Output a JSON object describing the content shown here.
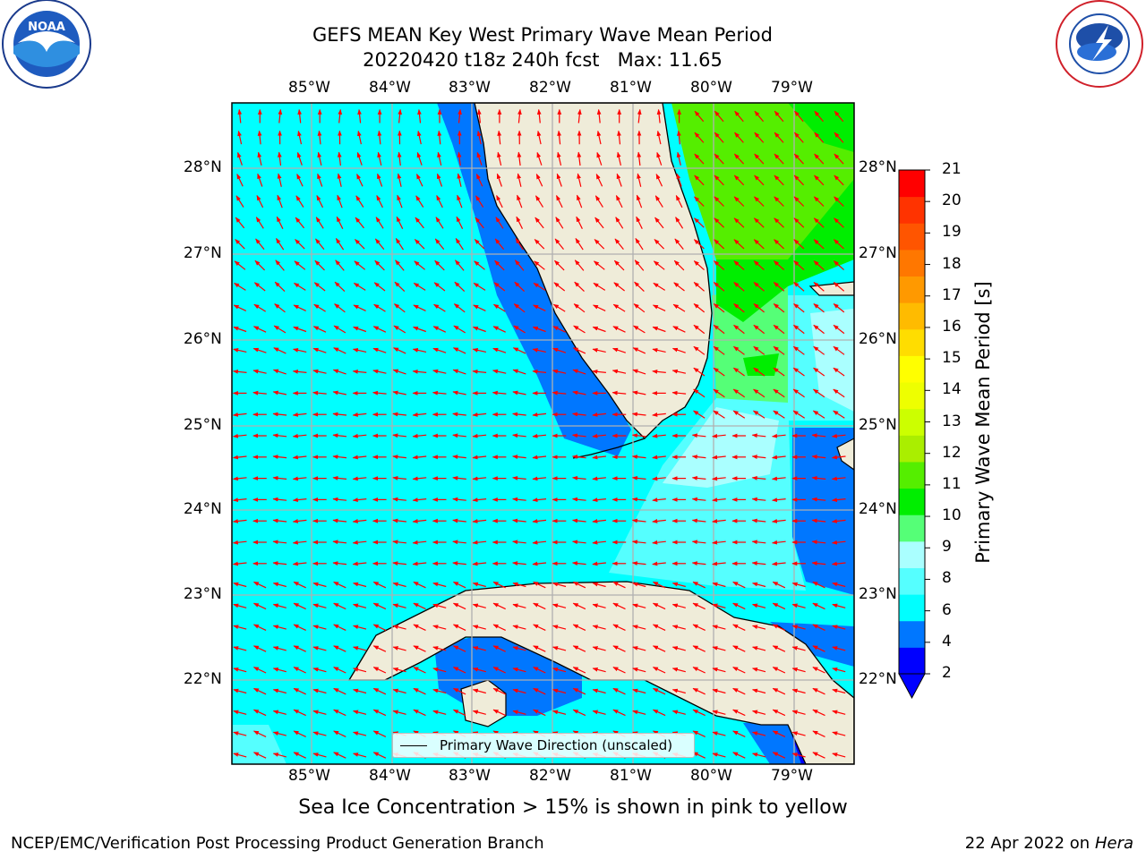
{
  "header": {
    "title_line1": "GEFS MEAN Key West Primary Wave Mean Period",
    "title_line2": "20220420 t18z 240h fcst   Max: 11.65"
  },
  "logos": {
    "left": "NOAA",
    "left_ring": "NATIONAL OCEANIC AND ATMOSPHERIC ADMINISTRATION · U.S. DEPARTMENT OF COMMERCE",
    "right_ring": "NATIONAL WEATHER SERVICE"
  },
  "map": {
    "lon_labels": [
      "85°W",
      "84°W",
      "83°W",
      "82°W",
      "81°W",
      "80°W",
      "79°W"
    ],
    "lat_labels": [
      "28°N",
      "27°N",
      "26°N",
      "25°N",
      "24°N",
      "23°N",
      "22°N"
    ],
    "legend_label": "Primary Wave Direction (unscaled)",
    "land_color": "#efecd9",
    "arrow_color": "#ff0000"
  },
  "colorbar": {
    "label": "Primary Wave Mean Period [s]",
    "ticks": [
      "2",
      "4",
      "6",
      "8",
      "9",
      "10",
      "11",
      "12",
      "13",
      "14",
      "15",
      "16",
      "17",
      "18",
      "19",
      "20",
      "21"
    ],
    "colors": [
      "#0000ff",
      "#0077ff",
      "#00ffff",
      "#55ffff",
      "#aaffff",
      "#55ff77",
      "#00ee00",
      "#55ee00",
      "#aaee00",
      "#ccff00",
      "#eeff00",
      "#ffff00",
      "#ffdd00",
      "#ffbb00",
      "#ff9900",
      "#ff7700",
      "#ff5500",
      "#ff3300",
      "#ff0000"
    ]
  },
  "notes": {
    "ice": "Sea Ice Concentration > 15% is shown in pink to yellow"
  },
  "footer": {
    "left": "NCEP/EMC/Verification Post Processing Product Generation Branch",
    "date": "22 Apr 2022 on ",
    "machine": "Hera"
  }
}
